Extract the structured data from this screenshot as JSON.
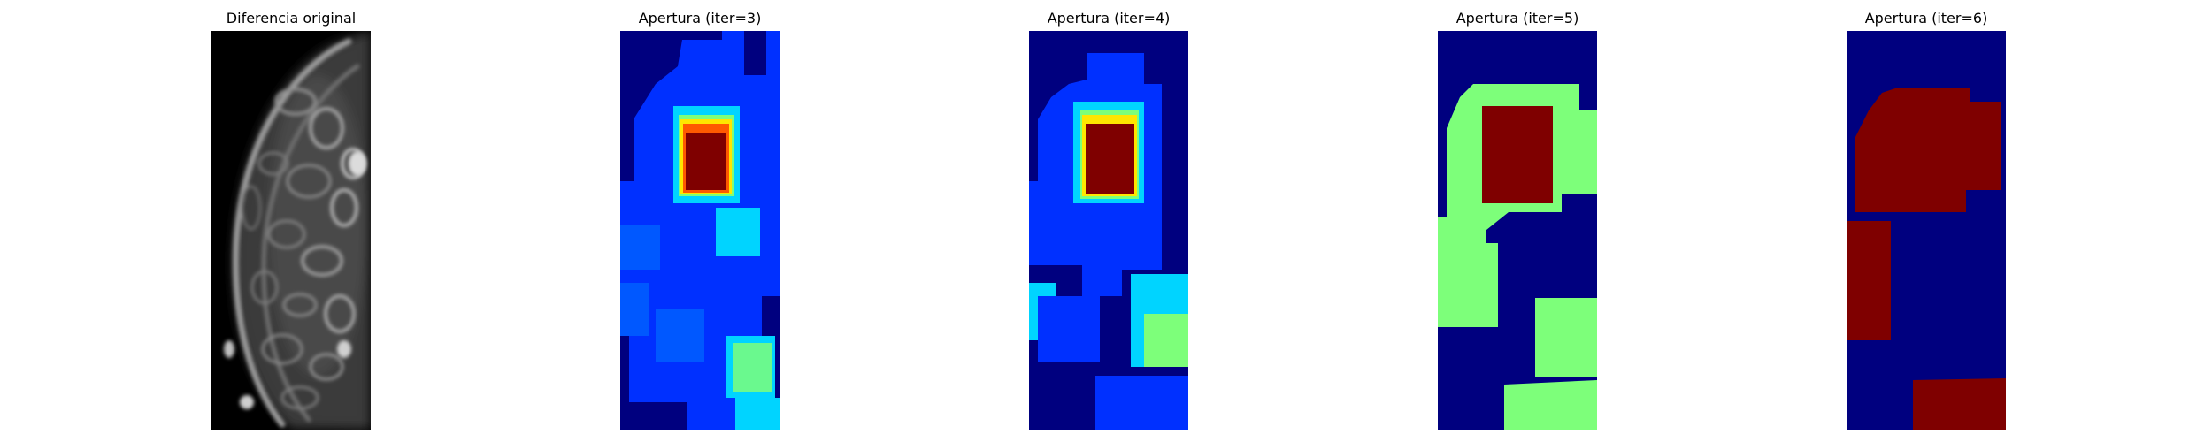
{
  "panels": [
    {
      "title": "Diferencia original",
      "colormap": "gray"
    },
    {
      "title": "Apertura (iter=3)",
      "colormap": "jet"
    },
    {
      "title": "Apertura (iter=4)",
      "colormap": "jet"
    },
    {
      "title": "Apertura (iter=5)",
      "colormap": "jet"
    },
    {
      "title": "Apertura (iter=6)",
      "colormap": "jet"
    }
  ],
  "colors": {
    "background": "#ffffff",
    "jet_dark_blue": "#00007f",
    "jet_blue": "#0030ff",
    "jet_light_blue": "#0058ff",
    "jet_cyan": "#00d4ff",
    "jet_green": "#7dff7a",
    "jet_yellow": "#ffe600",
    "jet_orange": "#ff5a00",
    "jet_dark_red": "#7f0000"
  }
}
